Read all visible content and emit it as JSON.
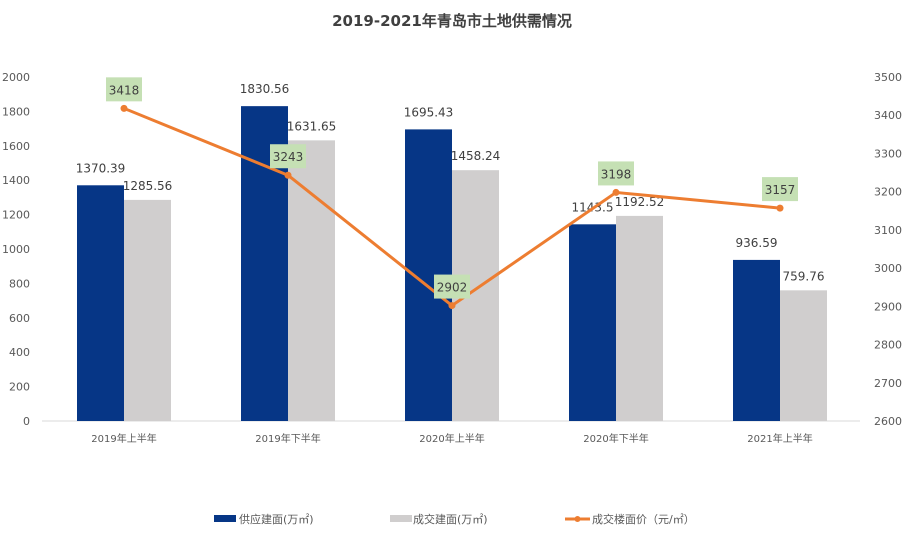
{
  "chart_data": {
    "type": "bar+line",
    "title": "2019-2021年青岛市土地供需情况",
    "categories": [
      "2019年上半年",
      "2019年下半年",
      "2020年上半年",
      "2020年下半年",
      "2021年上半年"
    ],
    "series": [
      {
        "name": "供应建面(万㎡)",
        "type": "bar",
        "axis": "left",
        "color": "#063686",
        "values": [
          1370.39,
          1830.56,
          1695.43,
          1143.5,
          936.59
        ],
        "labels": [
          "1370.39",
          "1830.56",
          "1695.43",
          "1143.5",
          "936.59"
        ]
      },
      {
        "name": "成交建面(万㎡)",
        "type": "bar",
        "axis": "left",
        "color": "#D0CECE",
        "values": [
          1285.56,
          1631.65,
          1458.24,
          1192.52,
          759.76
        ],
        "labels": [
          "1285.56",
          "1631.65",
          "1458.24",
          "1192.52",
          "759.76"
        ]
      },
      {
        "name": "成交楼面价（元/㎡）",
        "type": "line",
        "axis": "right",
        "color": "#ED7D31",
        "values": [
          3418,
          3243,
          2902,
          3198,
          3157
        ],
        "labels": [
          "3418",
          "3243",
          "2902",
          "3198",
          "3157"
        ],
        "label_bg": "#C5E0B4"
      }
    ],
    "y_left": {
      "range": [
        0,
        2000
      ],
      "ticks": [
        "0",
        "200",
        "400",
        "600",
        "800",
        "1000",
        "1200",
        "1400",
        "1600",
        "1800",
        "2000"
      ]
    },
    "y_right": {
      "range": [
        2600,
        3500
      ],
      "ticks": [
        "2600",
        "2700",
        "2800",
        "2900",
        "3000",
        "3100",
        "3200",
        "3300",
        "3400",
        "3500"
      ]
    },
    "grid": false,
    "legend": "bottom"
  }
}
